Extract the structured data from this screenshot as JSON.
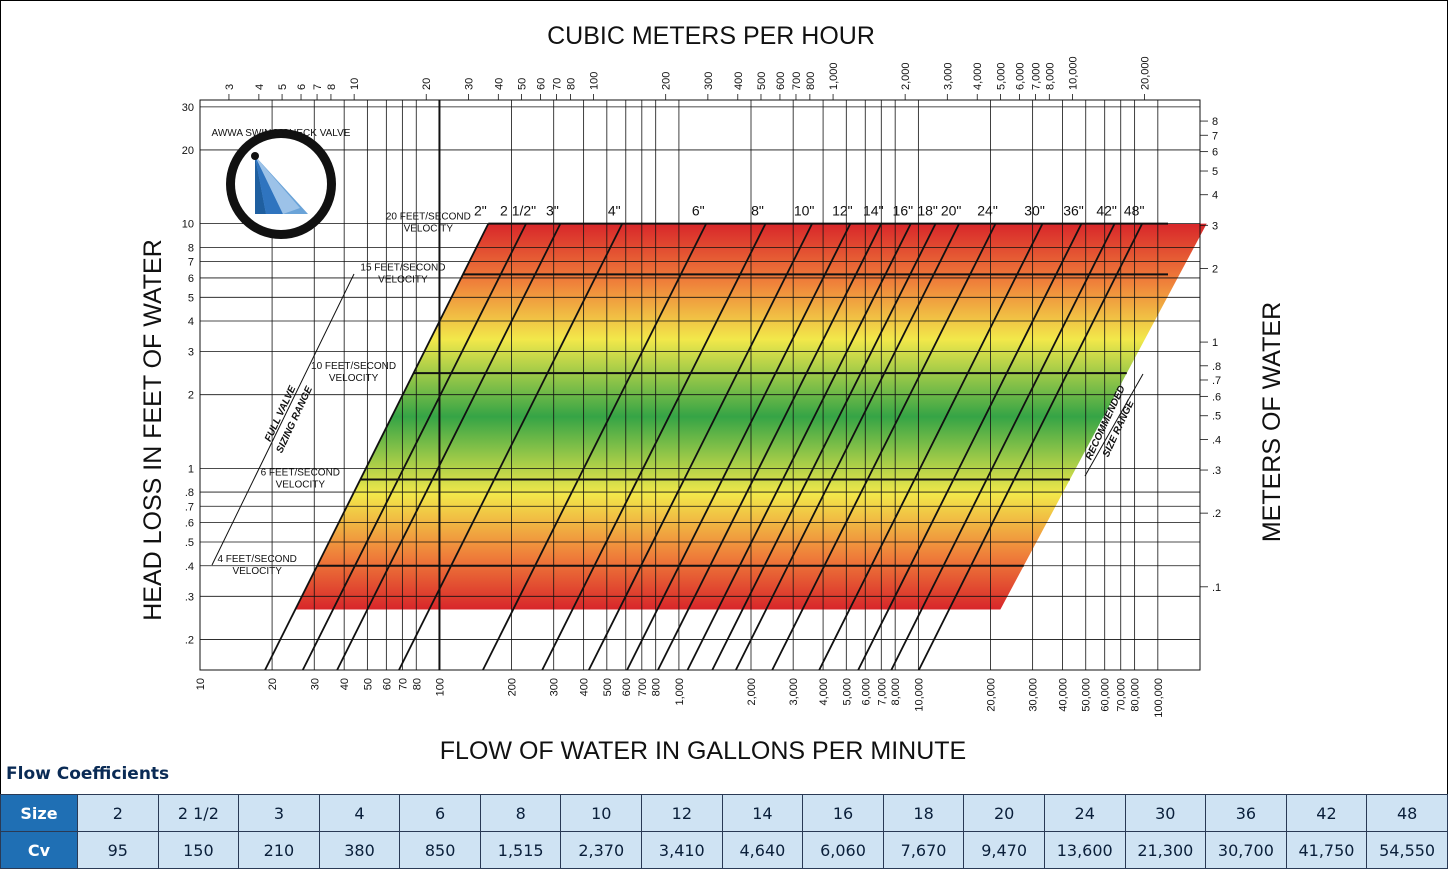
{
  "chart_data": {
    "type": "line",
    "title": "CUBIC METERS PER HOUR",
    "xlabel": "FLOW OF WATER IN GALLONS PER MINUTE",
    "ylabel": "HEAD LOSS IN FEET OF WATER",
    "y2label": "METERS OF WATER",
    "x_scale": "log",
    "y_scale": "log",
    "xlim": [
      10,
      150000
    ],
    "ylim": [
      0.15,
      32
    ],
    "x_ticks": [
      {
        "v": 10,
        "t": "10"
      },
      {
        "v": 20,
        "t": "20"
      },
      {
        "v": 30,
        "t": "30"
      },
      {
        "v": 40,
        "t": "40"
      },
      {
        "v": 50,
        "t": "50"
      },
      {
        "v": 60,
        "t": "60"
      },
      {
        "v": 70,
        "t": "70"
      },
      {
        "v": 80,
        "t": "80"
      },
      {
        "v": 100,
        "t": "100"
      },
      {
        "v": 200,
        "t": "200"
      },
      {
        "v": 300,
        "t": "300"
      },
      {
        "v": 400,
        "t": "400"
      },
      {
        "v": 500,
        "t": "500"
      },
      {
        "v": 600,
        "t": "600"
      },
      {
        "v": 700,
        "t": "700"
      },
      {
        "v": 800,
        "t": "800"
      },
      {
        "v": 1000,
        "t": "1,000"
      },
      {
        "v": 2000,
        "t": "2,000"
      },
      {
        "v": 3000,
        "t": "3,000"
      },
      {
        "v": 4000,
        "t": "4,000"
      },
      {
        "v": 5000,
        "t": "5,000"
      },
      {
        "v": 6000,
        "t": "6,000"
      },
      {
        "v": 7000,
        "t": "7,000"
      },
      {
        "v": 8000,
        "t": "8,000"
      },
      {
        "v": 10000,
        "t": "10,000"
      },
      {
        "v": 20000,
        "t": "20,000"
      },
      {
        "v": 30000,
        "t": "30,000"
      },
      {
        "v": 40000,
        "t": "40,000"
      },
      {
        "v": 50000,
        "t": "50,000"
      },
      {
        "v": 60000,
        "t": "60,000"
      },
      {
        "v": 70000,
        "t": "70,000"
      },
      {
        "v": 80000,
        "t": "80,000"
      },
      {
        "v": 100000,
        "t": "100,000"
      }
    ],
    "top_ticks": [
      {
        "v": 3,
        "t": "3"
      },
      {
        "v": 4,
        "t": "4"
      },
      {
        "v": 5,
        "t": "5"
      },
      {
        "v": 6,
        "t": "6"
      },
      {
        "v": 7,
        "t": "7"
      },
      {
        "v": 8,
        "t": "8"
      },
      {
        "v": 10,
        "t": "10"
      },
      {
        "v": 20,
        "t": "20"
      },
      {
        "v": 30,
        "t": "30"
      },
      {
        "v": 40,
        "t": "40"
      },
      {
        "v": 50,
        "t": "50"
      },
      {
        "v": 60,
        "t": "60"
      },
      {
        "v": 70,
        "t": "70"
      },
      {
        "v": 80,
        "t": "80"
      },
      {
        "v": 100,
        "t": "100"
      },
      {
        "v": 200,
        "t": "200"
      },
      {
        "v": 300,
        "t": "300"
      },
      {
        "v": 400,
        "t": "400"
      },
      {
        "v": 500,
        "t": "500"
      },
      {
        "v": 600,
        "t": "600"
      },
      {
        "v": 700,
        "t": "700"
      },
      {
        "v": 800,
        "t": "800"
      },
      {
        "v": 1000,
        "t": "1,000"
      },
      {
        "v": 2000,
        "t": "2,000"
      },
      {
        "v": 3000,
        "t": "3,000"
      },
      {
        "v": 4000,
        "t": "4,000"
      },
      {
        "v": 5000,
        "t": "5,000"
      },
      {
        "v": 6000,
        "t": "6,000"
      },
      {
        "v": 7000,
        "t": "7,000"
      },
      {
        "v": 8000,
        "t": "8,000"
      },
      {
        "v": 10000,
        "t": "10,000"
      },
      {
        "v": 20000,
        "t": "20,000"
      }
    ],
    "y_ticks": [
      {
        "v": 0.2,
        "t": ".2"
      },
      {
        "v": 0.3,
        "t": ".3"
      },
      {
        "v": 0.4,
        "t": ".4"
      },
      {
        "v": 0.5,
        "t": ".5"
      },
      {
        "v": 0.6,
        "t": ".6"
      },
      {
        "v": 0.7,
        "t": ".7"
      },
      {
        "v": 0.8,
        "t": ".8"
      },
      {
        "v": 1,
        "t": "1"
      },
      {
        "v": 2,
        "t": "2"
      },
      {
        "v": 3,
        "t": "3"
      },
      {
        "v": 4,
        "t": "4"
      },
      {
        "v": 5,
        "t": "5"
      },
      {
        "v": 6,
        "t": "6"
      },
      {
        "v": 7,
        "t": "7"
      },
      {
        "v": 8,
        "t": "8"
      },
      {
        "v": 10,
        "t": "10"
      },
      {
        "v": 20,
        "t": "20"
      },
      {
        "v": 30,
        "t": "30"
      }
    ],
    "right_ticks": [
      {
        "v": 0.1,
        "t": ".1"
      },
      {
        "v": 0.2,
        "t": ".2"
      },
      {
        "v": 0.3,
        "t": ".3"
      },
      {
        "v": 0.4,
        "t": ".4"
      },
      {
        "v": 0.5,
        "t": ".5"
      },
      {
        "v": 0.6,
        "t": ".6"
      },
      {
        "v": 0.7,
        "t": ".7"
      },
      {
        "v": 0.8,
        "t": ".8"
      },
      {
        "v": 1,
        "t": "1"
      },
      {
        "v": 2,
        "t": "2"
      },
      {
        "v": 3,
        "t": "3"
      },
      {
        "v": 4,
        "t": "4"
      },
      {
        "v": 5,
        "t": "5"
      },
      {
        "v": 6,
        "t": "6"
      },
      {
        "v": 7,
        "t": "7"
      },
      {
        "v": 8,
        "t": "8"
      }
    ],
    "grid": true,
    "band": {
      "hl_top": 10,
      "hl_bottom": 0.265,
      "left_x_at_top": 160,
      "left_x_at_bottom": 25,
      "right_x_at_top": 160000,
      "right_x_at_bottom": 22000
    },
    "valve_lines": [
      {
        "label": "2\"",
        "x_at_top": 160
      },
      {
        "label": "2 1/2\"",
        "x_at_top": 230
      },
      {
        "label": "3\"",
        "x_at_top": 320
      },
      {
        "label": "4\"",
        "x_at_top": 580
      },
      {
        "label": "6\"",
        "x_at_top": 1300
      },
      {
        "label": "8\"",
        "x_at_top": 2300
      },
      {
        "label": "10\"",
        "x_at_top": 3600
      },
      {
        "label": "12\"",
        "x_at_top": 5200
      },
      {
        "label": "14\"",
        "x_at_top": 7000
      },
      {
        "label": "16\"",
        "x_at_top": 9300
      },
      {
        "label": "18\"",
        "x_at_top": 11800
      },
      {
        "label": "20\"",
        "x_at_top": 14800
      },
      {
        "label": "24\"",
        "x_at_top": 21000
      },
      {
        "label": "30\"",
        "x_at_top": 33000
      },
      {
        "label": "36\"",
        "x_at_top": 48000
      },
      {
        "label": "42\"",
        "x_at_top": 66000
      },
      {
        "label": "48\"",
        "x_at_top": 86000
      }
    ],
    "velocity_lines": [
      {
        "label1": "20 FEET/SECOND",
        "label2": "VELOCITY",
        "hl": 10,
        "x_start": 160
      },
      {
        "label1": "15 FEET/SECOND",
        "label2": "VELOCITY",
        "hl": 6.2,
        "x_start": 115
      },
      {
        "label1": "10 FEET/SECOND",
        "label2": "VELOCITY",
        "hl": 2.45,
        "x_start": 100
      },
      {
        "label1": "6 FEET/SECOND",
        "label2": "VELOCITY",
        "hl": 0.9,
        "x_start": 58
      },
      {
        "label1": "4 FEET/SECOND",
        "label2": "VELOCITY",
        "hl": 0.4,
        "x_start": 32
      }
    ],
    "annotations": {
      "full_range_1": "FULL VALVE",
      "full_range_2": "SIZING RANGE",
      "recommended_1": "RECOMMENDED",
      "recommended_2": "SIZE RANGE",
      "logo_text": "AWWA SWING CHECK VALVE"
    }
  },
  "table": {
    "title": "Flow Coefficients",
    "size_label": "Size",
    "cv_label": "Cv",
    "sizes": [
      "2",
      "2 1/2",
      "3",
      "4",
      "6",
      "8",
      "10",
      "12",
      "14",
      "16",
      "18",
      "20",
      "24",
      "30",
      "36",
      "42",
      "48"
    ],
    "cv": [
      "95",
      "150",
      "210",
      "380",
      "850",
      "1,515",
      "2,370",
      "3,410",
      "4,640",
      "6,060",
      "7,670",
      "9,470",
      "13,600",
      "21,300",
      "30,700",
      "41,750",
      "54,550"
    ]
  },
  "colors": {
    "band_top": "#d8262a",
    "band_mid": "#3aa846",
    "band_yellow": "#f2e84a",
    "header_blue": "#1f6fb4",
    "cell_blue": "#cfe3f3"
  }
}
